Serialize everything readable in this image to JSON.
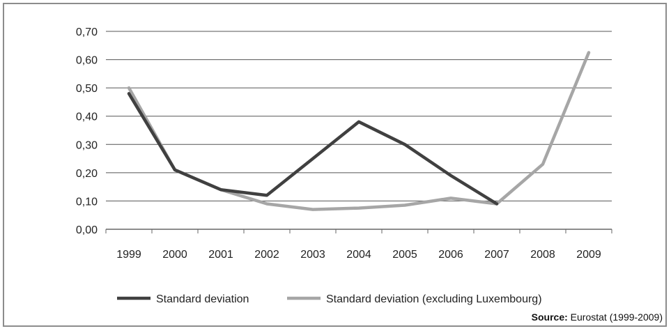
{
  "chart_data": {
    "type": "line",
    "x": [
      "1999",
      "2000",
      "2001",
      "2002",
      "2003",
      "2004",
      "2005",
      "2006",
      "2007",
      "2008",
      "2009"
    ],
    "ylim": [
      0,
      0.7
    ],
    "yticks": [
      "0,00",
      "0,10",
      "0,20",
      "0,30",
      "0,40",
      "0,50",
      "0,60",
      "0,70"
    ],
    "grid": true,
    "legend_position": "bottom",
    "series": [
      {
        "name": "Standard deviation",
        "color": "#404040",
        "values": [
          0.48,
          0.21,
          0.14,
          0.12,
          0.25,
          0.38,
          0.3,
          0.19,
          0.09,
          null,
          null
        ]
      },
      {
        "name": "Standard deviation (excluding Luxembourg)",
        "color": "#a6a6a6",
        "values": [
          0.5,
          0.21,
          0.14,
          0.09,
          0.07,
          0.075,
          0.085,
          0.11,
          0.09,
          0.23,
          0.625
        ]
      }
    ]
  },
  "source": {
    "label": "Source:",
    "text": " Eurostat (1999-2009)"
  }
}
